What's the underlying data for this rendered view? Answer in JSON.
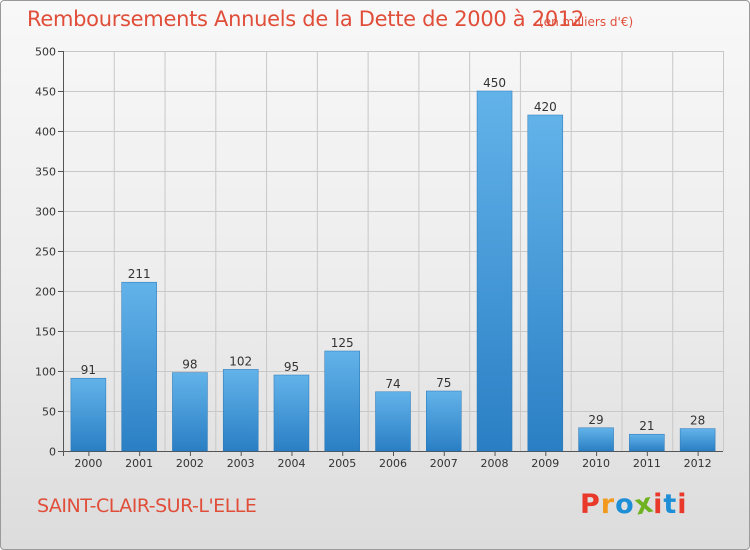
{
  "header": {
    "title": "Remboursements Annuels de la Dette de 2000 à 2012",
    "unit_note": "(en milliers d'€)"
  },
  "footer": {
    "place": "SAINT-CLAIR-SUR-L'ELLE",
    "logo_text": "Proxiti",
    "logo_colors": [
      "#e8392a",
      "#f29a1f",
      "#1e8fd6",
      "#6fb21f",
      "#e8392a",
      "#1e8fd6",
      "#e8392a"
    ]
  },
  "colors": {
    "title": "#e04e3a",
    "bar_light": "#63b3ea",
    "bar_dark": "#2a7fc4",
    "grid": "#c8c8c8",
    "axis": "#555555"
  },
  "chart_data": {
    "type": "bar",
    "title": "Remboursements Annuels de la Dette de 2000 à 2012",
    "subtitle": "(en milliers d'€)",
    "categories": [
      "2000",
      "2001",
      "2002",
      "2003",
      "2004",
      "2005",
      "2006",
      "2007",
      "2008",
      "2009",
      "2010",
      "2011",
      "2012"
    ],
    "values": [
      91,
      211,
      98,
      102,
      95,
      125,
      74,
      75,
      450,
      420,
      29,
      21,
      28
    ],
    "ylim": [
      0,
      500
    ],
    "yticks": [
      0,
      50,
      100,
      150,
      200,
      250,
      300,
      350,
      400,
      450,
      500
    ],
    "grid": true,
    "data_labels": true
  }
}
